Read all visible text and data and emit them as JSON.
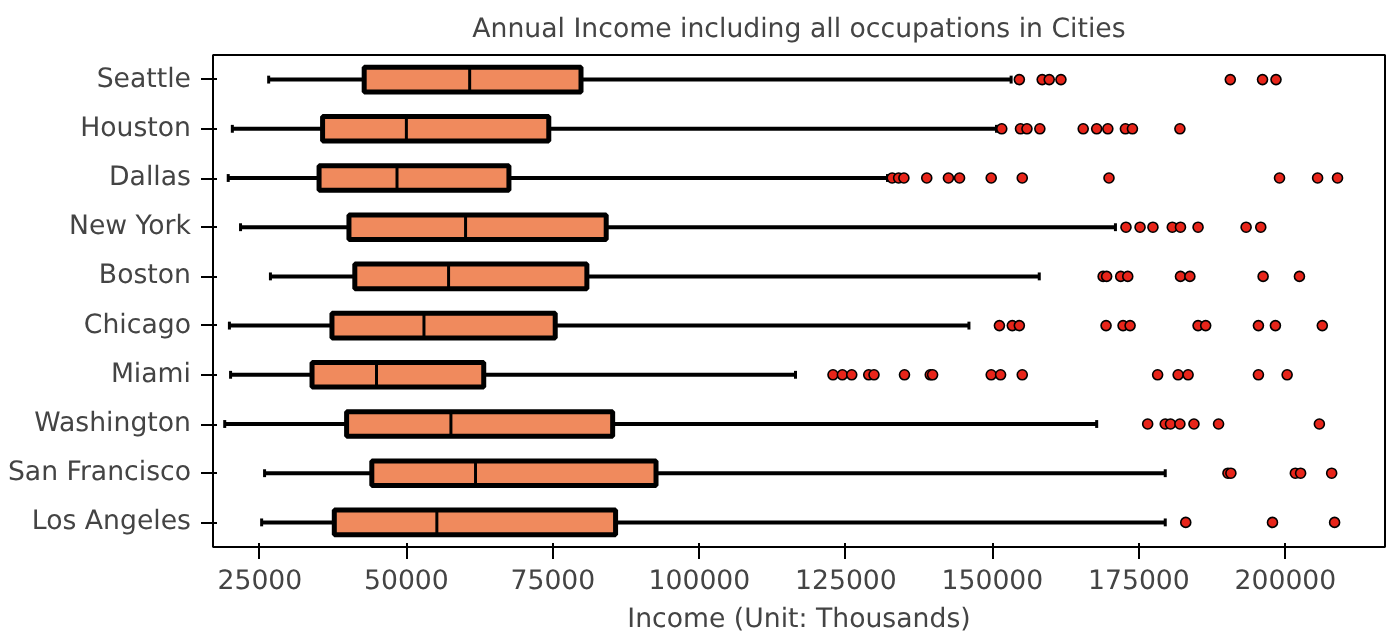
{
  "chart_data": {
    "type": "box",
    "orientation": "horizontal",
    "title": "Annual Income including all occupations in Cities",
    "xlabel": "Income (Unit: Thousands)",
    "categories": [
      "Seattle",
      "Houston",
      "Dallas",
      "New York",
      "Boston",
      "Chicago",
      "Miami",
      "Washington",
      "San Francisco",
      "Los Angeles"
    ],
    "xlim": [
      17000,
      217000
    ],
    "xticks": [
      25000,
      50000,
      75000,
      100000,
      125000,
      150000,
      175000,
      200000
    ],
    "grid": false,
    "series": [
      {
        "color": "#f08a5d",
        "boxes": [
          {
            "low": 26500,
            "q1": 42800,
            "median": 60800,
            "q3": 79800,
            "high": 153200,
            "outliers": [
              154600,
              158500,
              159700,
              161700,
              190600,
              196100,
              198400
            ]
          },
          {
            "low": 20300,
            "q1": 35700,
            "median": 50000,
            "q3": 74300,
            "high": 150700,
            "outliers": [
              151600,
              154800,
              155900,
              158100,
              165500,
              167800,
              169700,
              172700,
              173900,
              182000
            ]
          },
          {
            "low": 19600,
            "q1": 35100,
            "median": 48400,
            "q3": 67500,
            "high": 132100,
            "outliers": [
              132900,
              134000,
              134900,
              138800,
              142500,
              144400,
              149800,
              155100,
              169900,
              199000,
              205500,
              208900
            ]
          },
          {
            "low": 21700,
            "q1": 40200,
            "median": 60100,
            "q3": 84100,
            "high": 171000,
            "outliers": [
              172800,
              175200,
              177400,
              180700,
              182100,
              185100,
              193300,
              195800
            ]
          },
          {
            "low": 26800,
            "q1": 41200,
            "median": 57200,
            "q3": 80800,
            "high": 158000,
            "outliers": [
              168900,
              169500,
              171900,
              173100,
              182100,
              183700,
              196200,
              202400
            ]
          },
          {
            "low": 19800,
            "q1": 37300,
            "median": 53000,
            "q3": 75400,
            "high": 146000,
            "outliers": [
              151200,
              153400,
              154600,
              169400,
              172300,
              173500,
              185100,
              186400,
              195400,
              198300,
              206300
            ]
          },
          {
            "low": 20000,
            "q1": 33900,
            "median": 44900,
            "q3": 63200,
            "high": 116400,
            "outliers": [
              122800,
              124400,
              126000,
              128900,
              129800,
              135000,
              139400,
              139800,
              149800,
              151400,
              155100,
              178200,
              181700,
              183400,
              195400,
              200300
            ]
          },
          {
            "low": 19000,
            "q1": 39800,
            "median": 57600,
            "q3": 85200,
            "high": 167800,
            "outliers": [
              176500,
              179500,
              180400,
              182000,
              184400,
              188600,
              205800
            ]
          },
          {
            "low": 25800,
            "q1": 44100,
            "median": 61800,
            "q3": 92600,
            "high": 179500,
            "outliers": [
              190200,
              190700,
              201700,
              202600,
              207900
            ]
          },
          {
            "low": 25300,
            "q1": 37700,
            "median": 55200,
            "q3": 85700,
            "high": 179500,
            "outliers": [
              183000,
              197800,
              208400
            ]
          }
        ]
      }
    ]
  }
}
